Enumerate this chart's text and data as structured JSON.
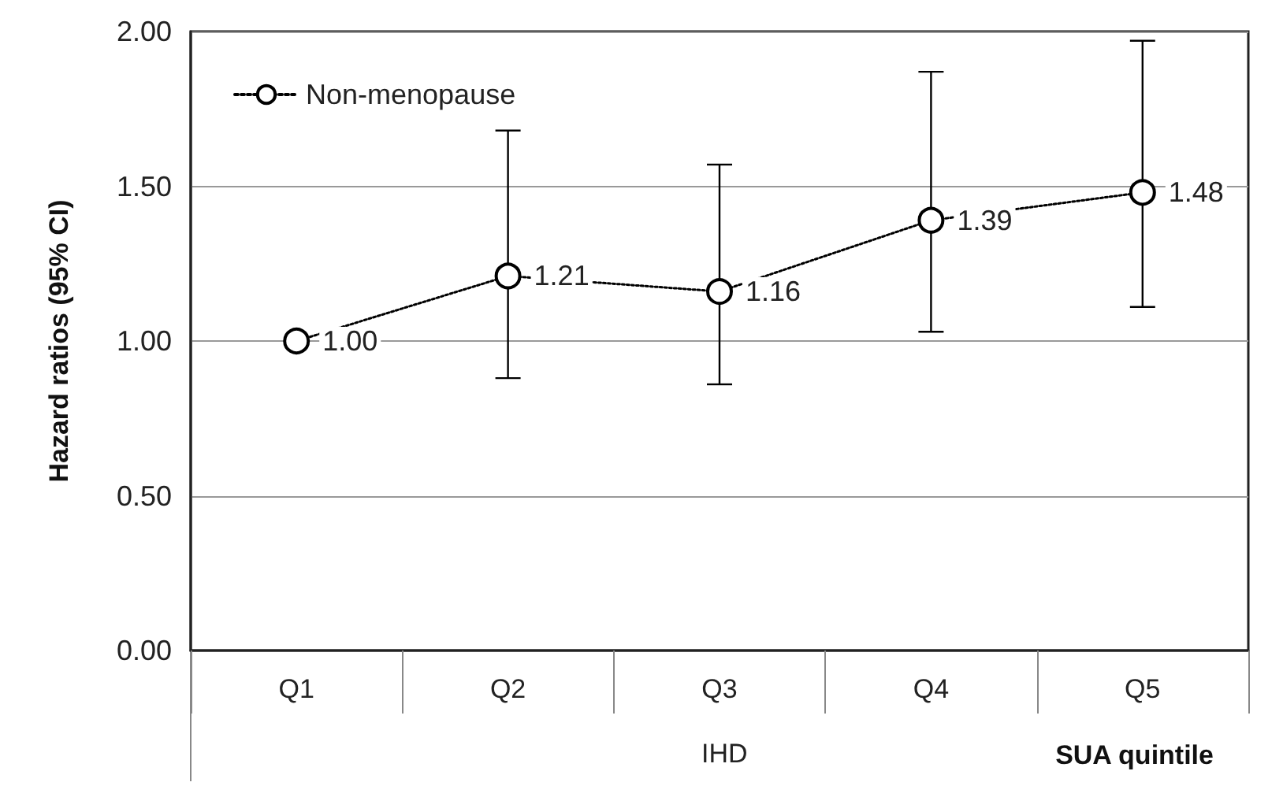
{
  "chart_data": {
    "type": "line",
    "ylabel": "Hazard ratios (95% CI)",
    "xlabel": "SUA quintile",
    "annotations": [
      "IHD"
    ],
    "categories": [
      "Q1",
      "Q2",
      "Q3",
      "Q4",
      "Q5"
    ],
    "series": [
      {
        "name": "Non-menopause",
        "color": "#000000",
        "values": [
          1.0,
          1.21,
          1.16,
          1.39,
          1.48
        ],
        "value_labels": [
          "1.00",
          "1.21",
          "1.16",
          "1.39",
          "1.48"
        ],
        "errors": [
          null,
          [
            0.88,
            1.68
          ],
          [
            0.86,
            1.57
          ],
          [
            1.03,
            1.87
          ],
          [
            1.11,
            1.97
          ]
        ]
      }
    ],
    "ylim": [
      0,
      2
    ],
    "yticks": [
      {
        "value": 0,
        "label": "0.00"
      },
      {
        "value": 0.5,
        "label": "0.50"
      },
      {
        "value": 1,
        "label": "1.00"
      },
      {
        "value": 1.5,
        "label": "1.50"
      },
      {
        "value": 2,
        "label": "2.00"
      }
    ],
    "grid": "y",
    "legend": "top left",
    "marker": "circle",
    "line_style": "dotted"
  }
}
